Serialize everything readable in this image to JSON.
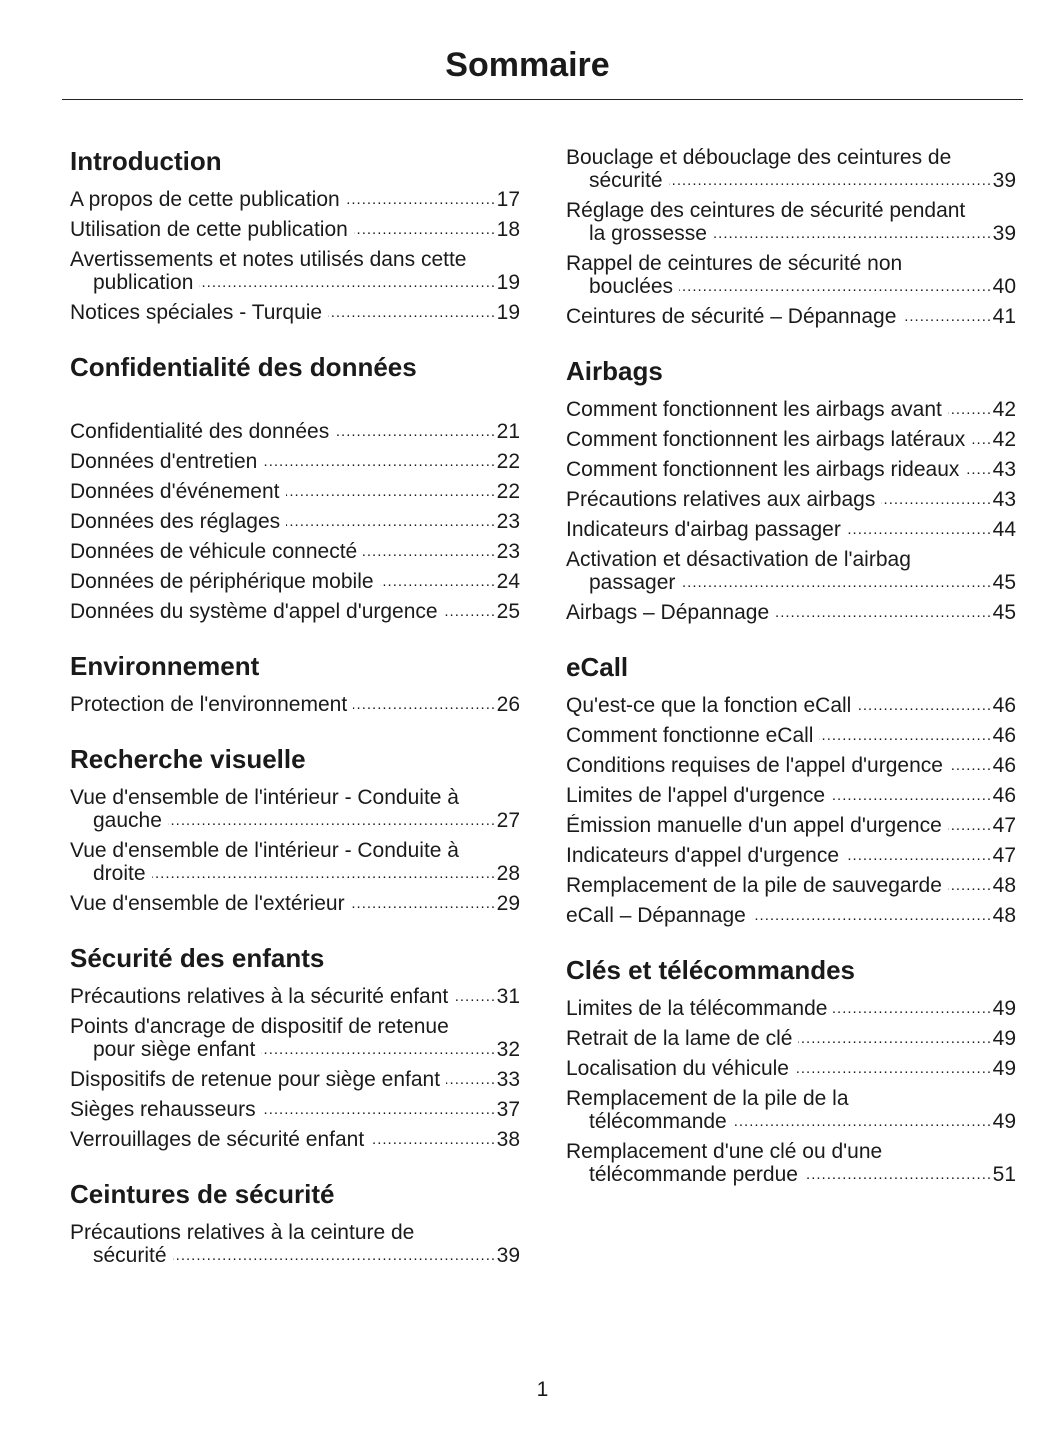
{
  "header": {
    "title": "Sommaire"
  },
  "columns": [
    {
      "sections": [
        {
          "heading": "Introduction",
          "entries": [
            {
              "text": "A propos de cette publication",
              "page": 17
            },
            {
              "text": "Utilisation de cette publication",
              "page": 18
            },
            {
              "text": "Avertissements et notes utilisés dans cette publication",
              "page": 19
            },
            {
              "text": "Notices spéciales - Turquie",
              "page": 19
            }
          ]
        },
        {
          "heading": "Confidentialité des données",
          "entries": [
            {
              "text": "Confidentialité des données",
              "page": 21
            },
            {
              "text": "Données d'entretien",
              "page": 22
            },
            {
              "text": "Données d'événement",
              "page": 22
            },
            {
              "text": "Données des réglages",
              "page": 23
            },
            {
              "text": "Données de véhicule connecté",
              "page": 23
            },
            {
              "text": "Données de périphérique mobile",
              "page": 24
            },
            {
              "text": "Données du système d'appel d'urgence",
              "page": 25
            }
          ]
        },
        {
          "heading": "Environnement",
          "entries": [
            {
              "text": "Protection de l'environnement",
              "page": 26
            }
          ]
        },
        {
          "heading": "Recherche visuelle",
          "entries": [
            {
              "text": "Vue d'ensemble de l'intérieur - Conduite à gauche",
              "page": 27
            },
            {
              "text": "Vue d'ensemble de l'intérieur - Conduite à droite",
              "page": 28
            },
            {
              "text": "Vue d'ensemble de l'extérieur",
              "page": 29
            }
          ]
        },
        {
          "heading": "Sécurité des enfants",
          "entries": [
            {
              "text": "Précautions relatives à la sécurité enfant",
              "page": 31
            },
            {
              "text": "Points d'ancrage de dispositif de retenue pour siège enfant",
              "page": 32
            },
            {
              "text": "Dispositifs de retenue pour siège enfant",
              "page": 33
            },
            {
              "text": "Sièges rehausseurs",
              "page": 37
            },
            {
              "text": "Verrouillages de sécurité enfant",
              "page": 38
            }
          ]
        },
        {
          "heading": "Ceintures de sécurité",
          "entries": [
            {
              "text": "Précautions relatives à la ceinture de sécurité",
              "page": 39
            }
          ]
        }
      ]
    },
    {
      "sections": [
        {
          "entries": [
            {
              "text": "Bouclage et débouclage des ceintures de sécurité",
              "page": 39
            },
            {
              "text": "Réglage des ceintures de sécurité pendant la grossesse",
              "page": 39
            },
            {
              "text": "Rappel de ceintures de sécurité non bouclées",
              "page": 40
            },
            {
              "text": "Ceintures de sécurité – Dépannage",
              "page": 41
            }
          ]
        },
        {
          "heading": "Airbags",
          "entries": [
            {
              "text": "Comment fonctionnent les airbags avant",
              "page": 42
            },
            {
              "text": "Comment fonctionnent les airbags latéraux",
              "page": 42
            },
            {
              "text": "Comment fonctionnent les airbags rideaux",
              "page": 43
            },
            {
              "text": "Précautions relatives aux airbags",
              "page": 43
            },
            {
              "text": "Indicateurs d'airbag passager",
              "page": 44
            },
            {
              "text": "Activation et désactivation de l'airbag passager",
              "page": 45
            },
            {
              "text": "Airbags – Dépannage",
              "page": 45
            }
          ]
        },
        {
          "heading": "eCall",
          "entries": [
            {
              "text": "Qu'est-ce que la fonction eCall",
              "page": 46
            },
            {
              "text": "Comment fonctionne eCall",
              "page": 46
            },
            {
              "text": "Conditions requises de l'appel d'urgence",
              "page": 46
            },
            {
              "text": "Limites de l'appel d'urgence",
              "page": 46
            },
            {
              "text": "Émission manuelle d'un appel d'urgence",
              "page": 47
            },
            {
              "text": "Indicateurs d'appel d'urgence",
              "page": 47
            },
            {
              "text": "Remplacement de la pile de sauvegarde",
              "page": 48
            },
            {
              "text": "eCall – Dépannage",
              "page": 48
            }
          ]
        },
        {
          "heading": "Clés et télécommandes",
          "entries": [
            {
              "text": "Limites de la télécommande",
              "page": 49
            },
            {
              "text": "Retrait de la lame de clé",
              "page": 49
            },
            {
              "text": "Localisation du véhicule",
              "page": 49
            },
            {
              "text": "Remplacement de la pile de la télécommande",
              "page": 49
            },
            {
              "text": "Remplacement d'une clé ou d'une télécommande perdue",
              "page": 51
            }
          ]
        }
      ]
    }
  ],
  "footer": {
    "page_number": 1
  }
}
